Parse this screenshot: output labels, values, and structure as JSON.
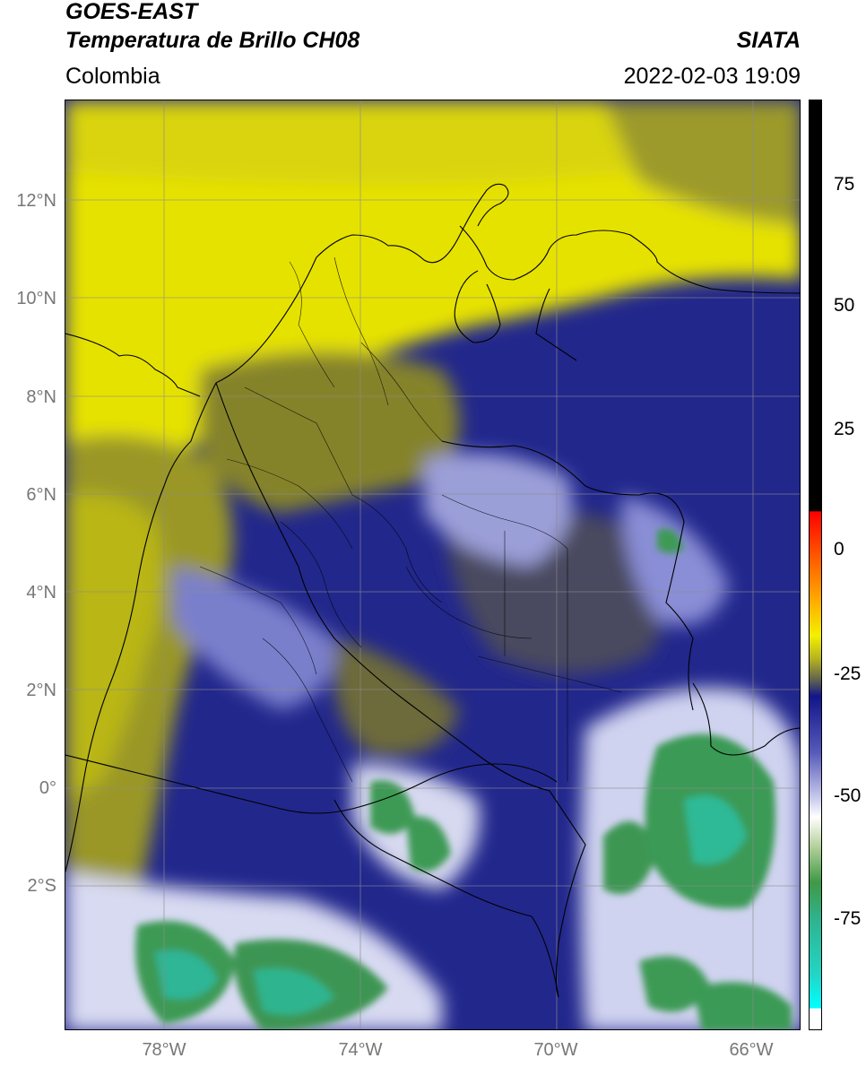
{
  "header": {
    "satellite": "GOES-EAST",
    "product": "Temperatura de Brillo CH08",
    "brand": "SIATA",
    "region": "Colombia",
    "timestamp": "2022-02-03 19:09"
  },
  "map": {
    "lat_ticks": [
      "12°N",
      "10°N",
      "8°N",
      "6°N",
      "4°N",
      "2°N",
      "0°",
      "2°S"
    ],
    "lon_ticks": [
      "78°W",
      "74°W",
      "70°W",
      "66°W"
    ],
    "extent": {
      "lon_min": -80,
      "lon_max": -65,
      "lat_min": -5,
      "lat_max": 14
    },
    "colors": {
      "yellow": "#e8e400",
      "olive": "#8f8d2c",
      "navy": "#1a1f86",
      "white": "#f2f2fa",
      "green": "#3e9a55",
      "teal": "#2dba96"
    }
  },
  "colorbar": {
    "ticks": [
      "75",
      "50",
      "25",
      "0",
      "-25",
      "-50",
      "-75"
    ],
    "tick_values": [
      75,
      50,
      25,
      0,
      -25,
      -50,
      -75
    ],
    "range": [
      -95,
      90
    ]
  }
}
